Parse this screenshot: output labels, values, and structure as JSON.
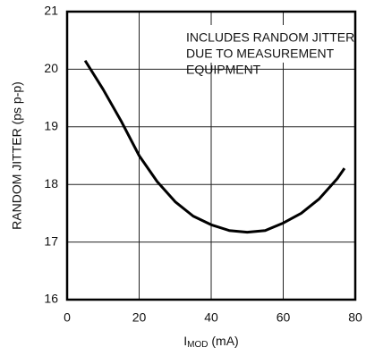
{
  "chart_data": {
    "type": "line",
    "y_label": "RANDOM JITTER (ps p-p)",
    "x_label": {
      "main": "I",
      "sub": "MOD",
      "rest": " (mA)"
    },
    "annotation": [
      "INCLUDES RANDOM JITTER",
      "DUE TO MEASUREMENT",
      "EQUIPMENT"
    ],
    "x": [
      5,
      10,
      15,
      20,
      25,
      30,
      35,
      40,
      45,
      50,
      55,
      60,
      65,
      70,
      75,
      77
    ],
    "series": [
      {
        "color": "#000000",
        "values": [
          20.15,
          19.65,
          19.1,
          18.5,
          18.05,
          17.7,
          17.45,
          17.3,
          17.2,
          17.17,
          17.2,
          17.33,
          17.5,
          17.75,
          18.1,
          18.28
        ]
      }
    ],
    "xlim": [
      0,
      80
    ],
    "xticks": [
      0,
      20,
      40,
      60,
      80
    ],
    "ylim": [
      16,
      21
    ],
    "yticks": [
      16,
      17,
      18,
      19,
      20,
      21
    ],
    "grid": true
  }
}
